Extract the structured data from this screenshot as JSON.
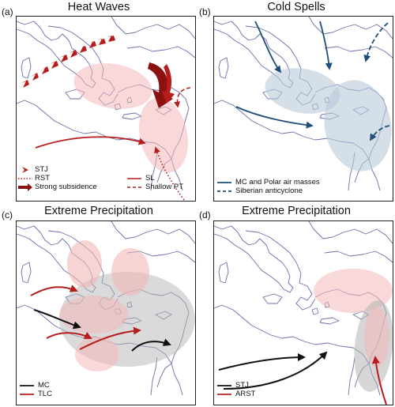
{
  "colors": {
    "red": "#b81d1d",
    "dark_red": "#8c1111",
    "navy": "#1f4e79",
    "black": "#111111",
    "coast": "#6a6fa8",
    "red_region": "#f2b8b8",
    "blue_region": "#b9c9d8",
    "gray_region": "#b5b5b5"
  },
  "panels": [
    {
      "label": "(a)",
      "title": "Heat Waves",
      "legend": [
        {
          "label": "STJ",
          "style": "chevron",
          "color": "#b81d1d"
        },
        {
          "label": "RST",
          "style": "dotted",
          "color": "#b81d1d"
        },
        {
          "label": "Strong subsidence",
          "style": "thick-arrow",
          "color": "#8c1111"
        },
        {
          "label": "SL",
          "style": "solid",
          "color": "#b81d1d"
        },
        {
          "label": "Shallow PT",
          "style": "dashed",
          "color": "#b81d1d"
        }
      ]
    },
    {
      "label": "(b)",
      "title": "Cold Spells",
      "legend": [
        {
          "label": "MC and Polar air masses",
          "style": "solid",
          "color": "#1f4e79"
        },
        {
          "label": "Siberian anticyclone",
          "style": "dashed",
          "color": "#1f4e79"
        }
      ]
    },
    {
      "label": "(c)",
      "title": "Extreme Precipitation",
      "legend": [
        {
          "label": "MC",
          "style": "solid",
          "color": "#111111"
        },
        {
          "label": "TLC",
          "style": "solid",
          "color": "#b81d1d"
        }
      ]
    },
    {
      "label": "(d)",
      "title": "Extreme Precipitation",
      "legend": [
        {
          "label": "STJ",
          "style": "solid",
          "color": "#111111"
        },
        {
          "label": "ARST",
          "style": "solid",
          "color": "#b81d1d"
        }
      ]
    }
  ]
}
